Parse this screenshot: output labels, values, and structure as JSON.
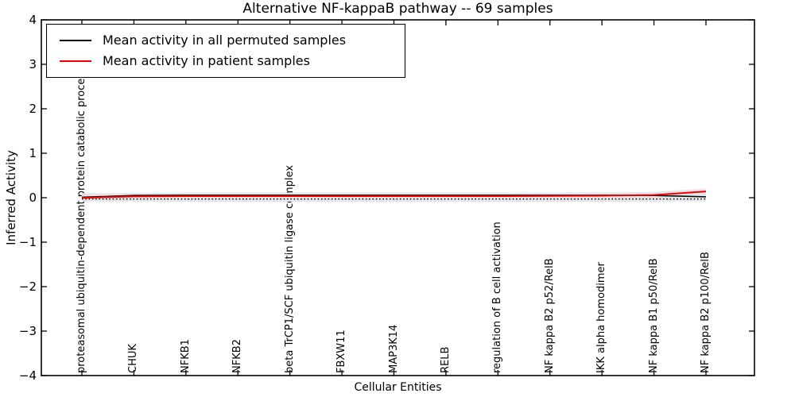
{
  "chart_data": {
    "type": "line",
    "title": "Alternative NF-kappaB pathway -- 69 samples",
    "xlabel": "Cellular Entities",
    "ylabel": "Inferred Activity",
    "ylim": [
      -4,
      4
    ],
    "ytick_values": [
      4,
      3,
      2,
      1,
      0,
      -1,
      -2,
      -3,
      -4
    ],
    "ytick_labels": [
      "4",
      "3",
      "2",
      "1",
      "0",
      "−1",
      "−2",
      "−3",
      "−4"
    ],
    "grid": false,
    "legend_position": "upper left",
    "categories": [
      "proteasomal ubiquitin-dependent protein catabolic process",
      "CHUK",
      "NFKB1",
      "NFKB2",
      "beta TrCP1/SCF ubiquitin ligase complex",
      "FBXW11",
      "MAP3K14",
      "RELB",
      "regulation of B cell activation",
      "NF kappa B2 p52/RelB",
      "IKK alpha homodimer",
      "NF kappa B1 p50/RelB",
      "NF kappa B2 p100/RelB"
    ],
    "series": [
      {
        "name": "Mean activity in all permuted samples",
        "color": "#000000",
        "values": [
          0.01,
          0.05,
          0.055,
          0.055,
          0.055,
          0.055,
          0.055,
          0.055,
          0.055,
          0.055,
          0.055,
          0.05,
          0.02
        ]
      },
      {
        "name": "Mean activity in patient samples",
        "color": "#f20000",
        "values": [
          -0.005,
          0.03,
          0.035,
          0.035,
          0.035,
          0.035,
          0.035,
          0.035,
          0.035,
          0.04,
          0.045,
          0.06,
          0.14
        ]
      }
    ],
    "band": {
      "color": "#e6e6ea",
      "upper": [
        0.1,
        0.11,
        0.115,
        0.115,
        0.115,
        0.115,
        0.115,
        0.115,
        0.115,
        0.115,
        0.12,
        0.13,
        0.21
      ],
      "lower": [
        -0.085,
        -0.088,
        -0.09,
        -0.09,
        -0.09,
        -0.09,
        -0.09,
        -0.09,
        -0.09,
        -0.09,
        -0.09,
        -0.085,
        -0.08
      ]
    },
    "reference_line": {
      "style": "dotted",
      "color": "#000000",
      "value": -0.03
    }
  }
}
